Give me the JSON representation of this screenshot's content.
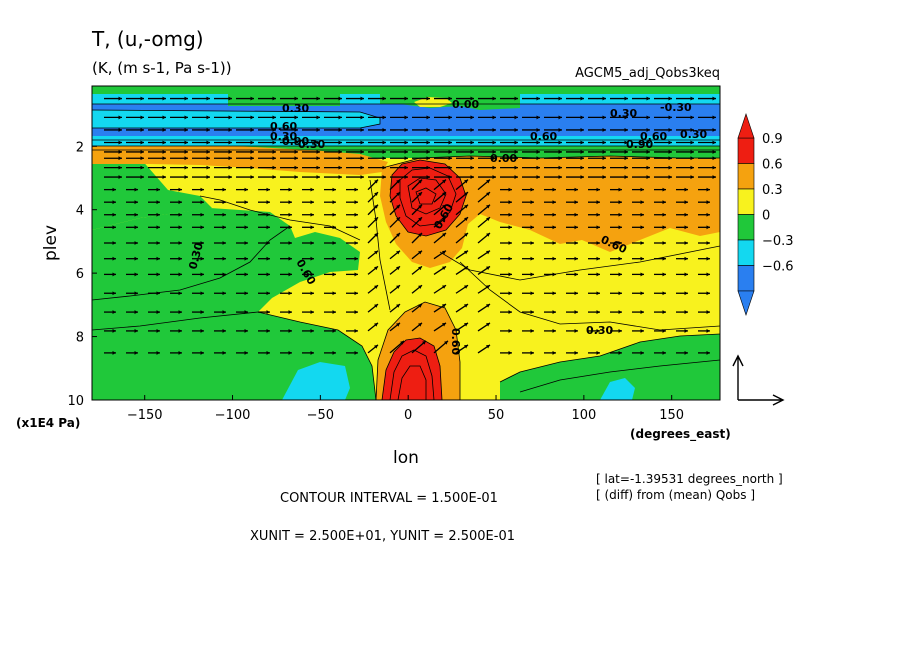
{
  "chart_data": {
    "type": "heatmap",
    "title": "T, (u,-omg)",
    "subtitle": "(K, (m s-1, Pa s-1))",
    "experiment": "AGCM5_adj_Qobs3keq",
    "xlabel": "lon",
    "ylabel": "plev",
    "x_units": "(degrees_east)",
    "y_units": "(x1E4 Pa)",
    "xlim": [
      -180,
      177.5
    ],
    "ylim": [
      10,
      0.1
    ],
    "y_reversed": true,
    "x_ticks": [
      -150,
      -100,
      -50,
      0,
      50,
      100,
      150
    ],
    "y_ticks": [
      2,
      4,
      6,
      8,
      10
    ],
    "colorbar": {
      "levels": [
        -0.6,
        -0.3,
        0,
        0.3,
        0.6,
        0.9
      ],
      "labels": [
        "0.9",
        "0.6",
        "0.3",
        "0",
        "-0.3",
        "-0.6"
      ],
      "colors": [
        "#2a7ff0",
        "#13d8f0",
        "#20c83a",
        "#f8f21e",
        "#f5a20f",
        "#ee1e12"
      ]
    },
    "contour_labels": [
      "0.30",
      "0.00",
      "-0.30",
      "0.60",
      "0.30",
      "0.60",
      "0.60",
      "0.90",
      "0.00",
      "0.30",
      "0.30",
      "0.60",
      "0.60",
      "0.90",
      "0.60",
      "0.30",
      "0.30",
      "0.60",
      "0.30"
    ],
    "info_lat": "[ lat=-1.39531 degrees_north ]",
    "info_diff": "[ (diff) from (mean) Qobs ]",
    "contour_interval": "CONTOUR INTERVAL = 1.500E-01",
    "units_note": "XUNIT = 2.500E+01, YUNIT = 2.500E-01",
    "grid": false,
    "legend_position": "right"
  }
}
